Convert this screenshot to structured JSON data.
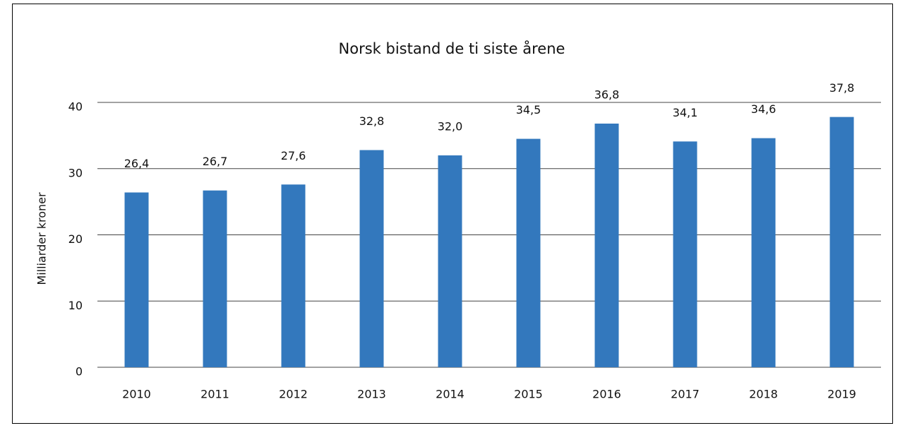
{
  "chart_data": {
    "type": "bar",
    "title": "Norsk bistand de ti siste årene",
    "y_label": "Milliarder kroner",
    "categories": [
      "2010",
      "2011",
      "2012",
      "2013",
      "2014",
      "2015",
      "2016",
      "2017",
      "2018",
      "2019"
    ],
    "values": [
      26.4,
      26.7,
      27.6,
      32.8,
      32.0,
      34.5,
      36.8,
      34.1,
      34.6,
      37.8
    ],
    "value_labels": [
      "26,4",
      "26,7",
      "27,6",
      "32,8",
      "32,0",
      "34,5",
      "36,8",
      "34,1",
      "34,6",
      "37,8"
    ],
    "color": "#3378bd",
    "ylim": [
      0,
      40
    ],
    "yticks": [
      0,
      10,
      20,
      30,
      40
    ],
    "grid": true
  }
}
